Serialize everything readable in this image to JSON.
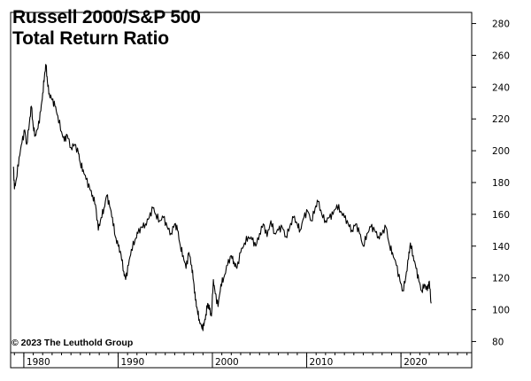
{
  "chart_data": {
    "type": "line",
    "title_lines": [
      "Russell 2000/S&P 500",
      "Total Return Ratio"
    ],
    "copyright": "© 2023 The Leuthold Group",
    "xlabel": "",
    "ylabel": "",
    "xlim": [
      1978.6,
      2027.5
    ],
    "ylim": [
      73,
      287
    ],
    "yticks": [
      "80",
      "100",
      "120",
      "140",
      "160",
      "180",
      "200",
      "220",
      "240",
      "260",
      "280"
    ],
    "xticks": [
      "1980",
      "1990",
      "2000",
      "2010",
      "2020"
    ],
    "grid": false,
    "y_axis_side": "right",
    "line_color": "#000000",
    "series": [
      {
        "points": [
          [
            1978.9,
            190
          ],
          [
            1979.0,
            176
          ],
          [
            1979.2,
            182
          ],
          [
            1979.5,
            196
          ],
          [
            1979.8,
            205
          ],
          [
            1980.1,
            213
          ],
          [
            1980.3,
            204
          ],
          [
            1980.6,
            218
          ],
          [
            1980.8,
            228
          ],
          [
            1981.0,
            215
          ],
          [
            1981.2,
            210
          ],
          [
            1981.5,
            214
          ],
          [
            1981.8,
            225
          ],
          [
            1982.0,
            236
          ],
          [
            1982.2,
            248
          ],
          [
            1982.35,
            254
          ],
          [
            1982.5,
            243
          ],
          [
            1982.7,
            236
          ],
          [
            1983.0,
            232
          ],
          [
            1983.3,
            228
          ],
          [
            1983.6,
            222
          ],
          [
            1984.0,
            212
          ],
          [
            1984.3,
            206
          ],
          [
            1984.6,
            210
          ],
          [
            1985.0,
            202
          ],
          [
            1985.4,
            204
          ],
          [
            1985.8,
            198
          ],
          [
            1986.0,
            192
          ],
          [
            1986.3,
            188
          ],
          [
            1986.6,
            182
          ],
          [
            1987.0,
            176
          ],
          [
            1987.3,
            172
          ],
          [
            1987.6,
            166
          ],
          [
            1987.9,
            150
          ],
          [
            1988.2,
            158
          ],
          [
            1988.5,
            164
          ],
          [
            1988.8,
            172
          ],
          [
            1989.1,
            165
          ],
          [
            1989.4,
            158
          ],
          [
            1989.7,
            146
          ],
          [
            1990.0,
            140
          ],
          [
            1990.3,
            135
          ],
          [
            1990.6,
            124
          ],
          [
            1990.8,
            119
          ],
          [
            1991.1,
            128
          ],
          [
            1991.4,
            138
          ],
          [
            1991.8,
            144
          ],
          [
            1992.1,
            148
          ],
          [
            1992.5,
            152
          ],
          [
            1992.9,
            154
          ],
          [
            1993.3,
            158
          ],
          [
            1993.7,
            164
          ],
          [
            1994.0,
            160
          ],
          [
            1994.4,
            156
          ],
          [
            1994.8,
            158
          ],
          [
            1995.2,
            152
          ],
          [
            1995.6,
            148
          ],
          [
            1996.0,
            154
          ],
          [
            1996.3,
            150
          ],
          [
            1996.6,
            140
          ],
          [
            1996.9,
            134
          ],
          [
            1997.2,
            126
          ],
          [
            1997.5,
            136
          ],
          [
            1997.8,
            128
          ],
          [
            1998.0,
            118
          ],
          [
            1998.2,
            106
          ],
          [
            1998.4,
            100
          ],
          [
            1998.6,
            94
          ],
          [
            1998.9,
            88
          ],
          [
            1999.1,
            90
          ],
          [
            1999.3,
            97
          ],
          [
            1999.5,
            104
          ],
          [
            1999.7,
            100
          ],
          [
            1999.9,
            96
          ],
          [
            2000.1,
            119
          ],
          [
            2000.3,
            110
          ],
          [
            2000.6,
            102
          ],
          [
            2000.9,
            116
          ],
          [
            2001.2,
            120
          ],
          [
            2001.6,
            128
          ],
          [
            2002.0,
            134
          ],
          [
            2002.3,
            130
          ],
          [
            2002.6,
            126
          ],
          [
            2003.0,
            136
          ],
          [
            2003.4,
            142
          ],
          [
            2003.8,
            146
          ],
          [
            2004.2,
            144
          ],
          [
            2004.6,
            140
          ],
          [
            2005.0,
            148
          ],
          [
            2005.4,
            154
          ],
          [
            2005.8,
            146
          ],
          [
            2006.2,
            156
          ],
          [
            2006.6,
            148
          ],
          [
            2007.0,
            150
          ],
          [
            2007.4,
            152
          ],
          [
            2007.8,
            146
          ],
          [
            2008.2,
            152
          ],
          [
            2008.6,
            158
          ],
          [
            2009.0,
            154
          ],
          [
            2009.3,
            150
          ],
          [
            2009.7,
            158
          ],
          [
            2010.1,
            162
          ],
          [
            2010.5,
            156
          ],
          [
            2010.9,
            164
          ],
          [
            2011.2,
            168
          ],
          [
            2011.6,
            160
          ],
          [
            2012.0,
            156
          ],
          [
            2012.4,
            158
          ],
          [
            2012.8,
            160
          ],
          [
            2013.2,
            166
          ],
          [
            2013.6,
            162
          ],
          [
            2014.0,
            158
          ],
          [
            2014.4,
            154
          ],
          [
            2014.8,
            150
          ],
          [
            2015.2,
            154
          ],
          [
            2015.6,
            148
          ],
          [
            2016.0,
            140
          ],
          [
            2016.4,
            148
          ],
          [
            2016.8,
            152
          ],
          [
            2017.2,
            150
          ],
          [
            2017.6,
            146
          ],
          [
            2018.0,
            148
          ],
          [
            2018.4,
            152
          ],
          [
            2018.8,
            140
          ],
          [
            2019.1,
            136
          ],
          [
            2019.5,
            128
          ],
          [
            2019.9,
            118
          ],
          [
            2020.2,
            112
          ],
          [
            2020.5,
            120
          ],
          [
            2020.8,
            132
          ],
          [
            2021.0,
            142
          ],
          [
            2021.3,
            134
          ],
          [
            2021.6,
            126
          ],
          [
            2021.9,
            118
          ],
          [
            2022.2,
            112
          ],
          [
            2022.5,
            116
          ],
          [
            2022.8,
            112
          ],
          [
            2023.0,
            118
          ],
          [
            2023.2,
            104
          ]
        ]
      }
    ]
  }
}
